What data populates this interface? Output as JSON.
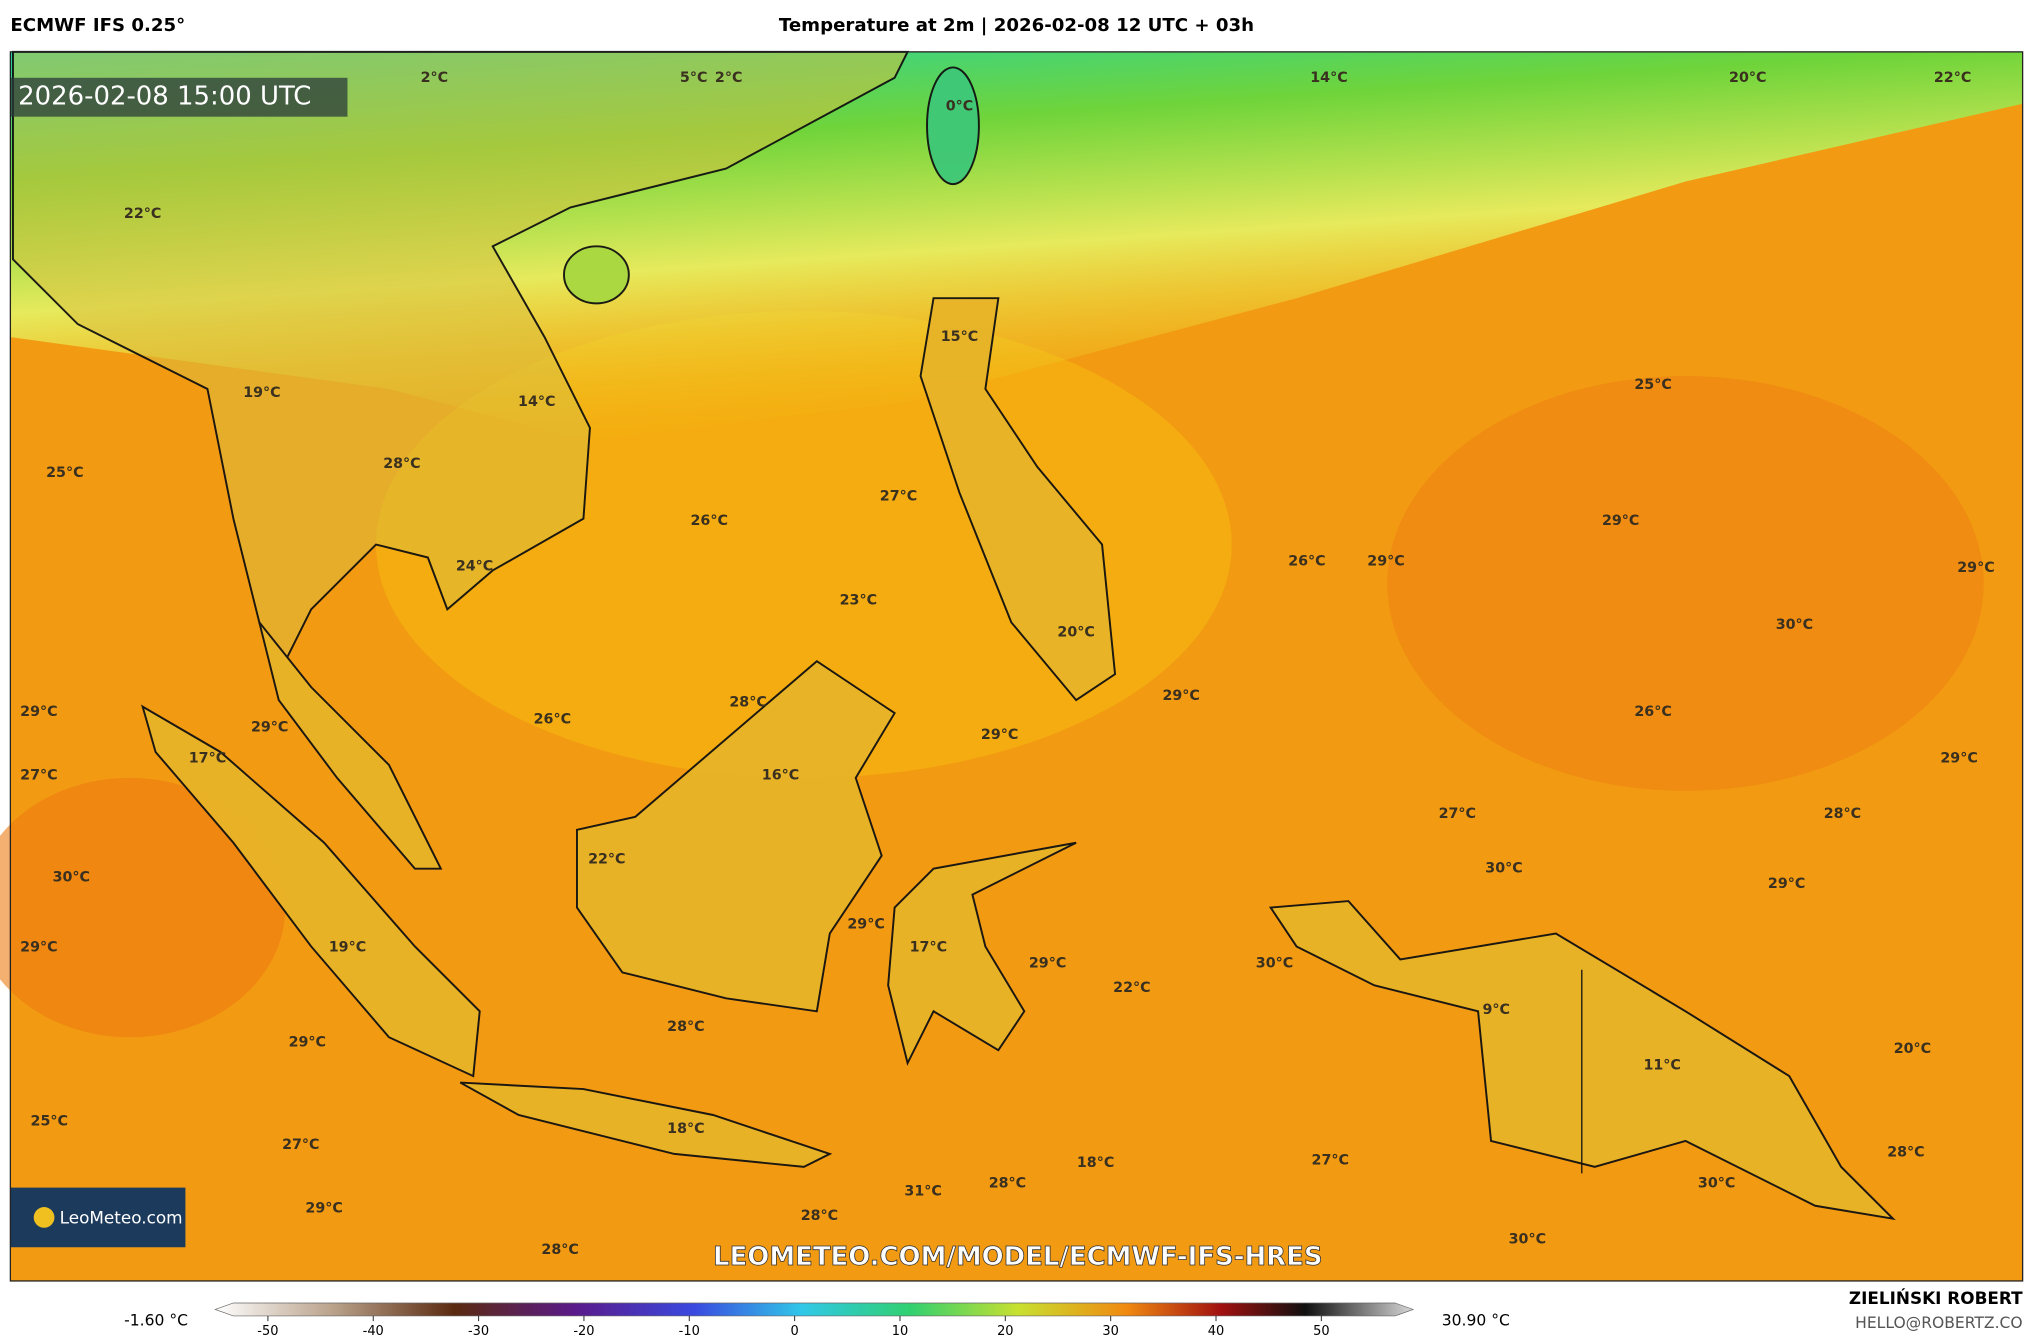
{
  "header": {
    "model": "ECMWF IFS 0.25°",
    "title": "Temperature at 2m | 2026-02-08 12 UTC + 03h"
  },
  "map": {
    "timestamp": "2026-02-08 15:00 UTC",
    "temperature_labels": [
      "2°C",
      "5°C",
      "2°C",
      "0°C",
      "14°C",
      "20°C",
      "22°C",
      "22°C",
      "15°C",
      "19°C",
      "14°C",
      "25°C",
      "28°C",
      "25°C",
      "27°C",
      "26°C",
      "29°C",
      "26°C",
      "29°C",
      "29°C",
      "24°C",
      "23°C",
      "30°C",
      "20°C",
      "29°C",
      "28°C",
      "29°C",
      "26°C",
      "26°C",
      "29°C",
      "29°C",
      "17°C",
      "29°C",
      "27°C",
      "16°C",
      "27°C",
      "28°C",
      "22°C",
      "30°C",
      "30°C",
      "29°C",
      "29°C",
      "17°C",
      "29°C",
      "19°C",
      "30°C",
      "29°C",
      "22°C",
      "9°C",
      "28°C",
      "29°C",
      "20°C",
      "11°C",
      "25°C",
      "18°C",
      "27°C",
      "28°C",
      "27°C",
      "18°C",
      "30°C",
      "28°C",
      "31°C",
      "29°C",
      "28°C",
      "30°C",
      "28°C"
    ],
    "watermark": "LEOMETEO.COM/MODEL/ECMWF-IFS-HRES",
    "logo": "LeoMeteo.com"
  },
  "legend": {
    "min_label": "-1.60 °C",
    "max_label": "30.90 °C",
    "ticks": [
      -50,
      -40,
      -30,
      -20,
      -10,
      0,
      10,
      20,
      30,
      40,
      50
    ],
    "lim": [
      -55,
      57
    ]
  },
  "footer": {
    "author": "ZIELIŃSKI ROBERT",
    "email": "HELLO@ROBERTZ.CO"
  }
}
